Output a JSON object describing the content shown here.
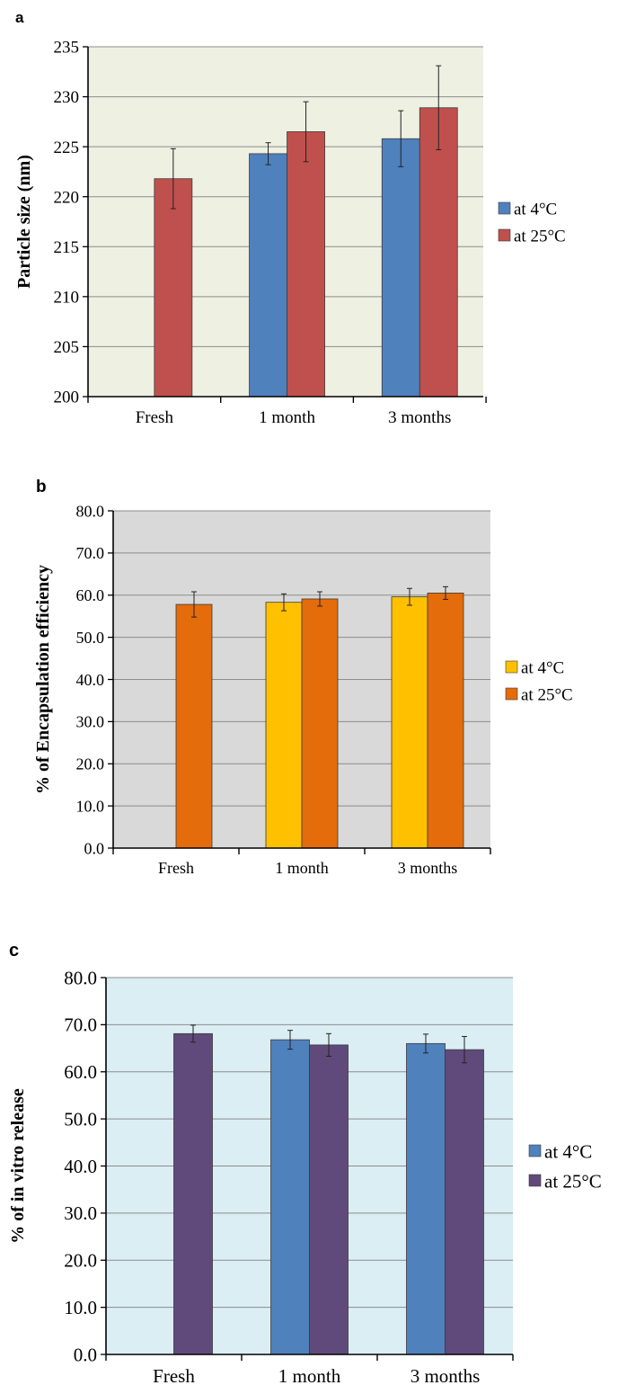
{
  "chart_data": [
    {
      "panel": "a",
      "type": "bar",
      "title": "",
      "xlabel": "",
      "ylabel": "Particle size (nm)",
      "categories": [
        "Fresh",
        "1 month",
        "3 months"
      ],
      "ylim": [
        200,
        235
      ],
      "yticks": [
        "200",
        "205",
        "210",
        "215",
        "220",
        "225",
        "230",
        "235"
      ],
      "grid": true,
      "legend_position": "right",
      "plot_background": "#eef0e2",
      "series": [
        {
          "name": "at 4°C",
          "color": "#4f81bd",
          "values": [
            null,
            224.3,
            225.8
          ],
          "errors": [
            null,
            1.1,
            2.8
          ]
        },
        {
          "name": "at 25°C",
          "color": "#c0504d",
          "values": [
            221.8,
            226.5,
            228.9
          ],
          "errors": [
            3.0,
            3.0,
            4.2
          ]
        }
      ]
    },
    {
      "panel": "b",
      "type": "bar",
      "title": "",
      "xlabel": "",
      "ylabel": "% of Encapsulation efficiency",
      "categories": [
        "Fresh",
        "1 month",
        "3 months"
      ],
      "ylim": [
        0,
        80
      ],
      "yticks": [
        "0.0",
        "10.0",
        "20.0",
        "30.0",
        "40.0",
        "50.0",
        "60.0",
        "70.0",
        "80.0"
      ],
      "grid": true,
      "legend_position": "right",
      "plot_background": "#d9d9d9",
      "series": [
        {
          "name": "at 4°C",
          "color": "#ffc000",
          "values": [
            null,
            58.3,
            59.6
          ],
          "errors": [
            null,
            2.0,
            2.0
          ]
        },
        {
          "name": "at 25°C",
          "color": "#e46c0a",
          "values": [
            57.8,
            59.1,
            60.5
          ],
          "errors": [
            3.0,
            1.7,
            1.5
          ]
        }
      ]
    },
    {
      "panel": "c",
      "type": "bar",
      "title": "",
      "xlabel": "",
      "ylabel": "% of in vitro release",
      "categories": [
        "Fresh",
        "1 month",
        "3 months"
      ],
      "ylim": [
        0,
        80
      ],
      "yticks": [
        "0.0",
        "10.0",
        "20.0",
        "30.0",
        "40.0",
        "50.0",
        "60.0",
        "70.0",
        "80.0"
      ],
      "grid": true,
      "legend_position": "right",
      "plot_background": "#dbeef4",
      "series": [
        {
          "name": "at 4°C",
          "color": "#4f81bd",
          "values": [
            null,
            66.8,
            66.0
          ],
          "errors": [
            null,
            2.0,
            2.0
          ]
        },
        {
          "name": "at 25°C",
          "color": "#604a7b",
          "values": [
            68.1,
            65.7,
            64.7
          ],
          "errors": [
            1.8,
            2.4,
            2.8
          ]
        }
      ]
    }
  ]
}
